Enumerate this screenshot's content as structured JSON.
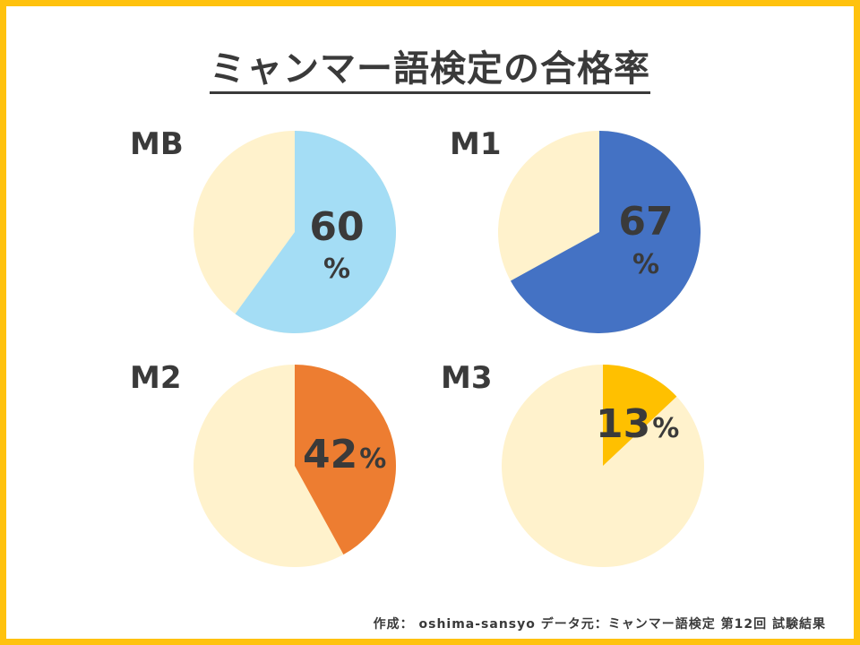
{
  "title": "ミャンマー語検定の合格率",
  "footer": "作成： oshima-sansyo データ元：ミャンマー語検定 第12回 試験結果",
  "colors": {
    "remainder": "#FFF2CC",
    "border": "#FFC20E"
  },
  "chart_data": [
    {
      "type": "pie",
      "title": "MB",
      "value": 60,
      "percent_label": "60",
      "unit": "%",
      "color": "#A4DDF5"
    },
    {
      "type": "pie",
      "title": "M1",
      "value": 67,
      "percent_label": "67",
      "unit": "%",
      "color": "#4472C4"
    },
    {
      "type": "pie",
      "title": "M2",
      "value": 42,
      "percent_label": "42",
      "unit": "%",
      "color": "#ED7D31"
    },
    {
      "type": "pie",
      "title": "M3",
      "value": 13,
      "percent_label": "13",
      "unit": "%",
      "color": "#FFC000"
    }
  ]
}
